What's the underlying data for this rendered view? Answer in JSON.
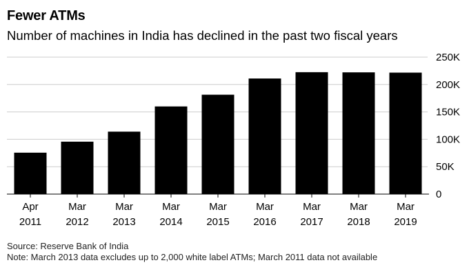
{
  "header": {
    "title": "Fewer ATMs",
    "subtitle": "Number of machines in India has declined in the past two fiscal years"
  },
  "footer": {
    "source": "Source: Reserve Bank of India",
    "note": "Note: March 2013 data excludes up to 2,000 white label ATMs; March 2011 data not available"
  },
  "colors": {
    "bar": "#000000",
    "gridline": "#cccccc",
    "baseline": "#000000",
    "text": "#000000"
  },
  "chart_data": {
    "type": "bar",
    "categories": [
      [
        "Apr",
        "2011"
      ],
      [
        "Mar",
        "2012"
      ],
      [
        "Mar",
        "2013"
      ],
      [
        "Mar",
        "2014"
      ],
      [
        "Mar",
        "2015"
      ],
      [
        "Mar",
        "2016"
      ],
      [
        "Mar",
        "2017"
      ],
      [
        "Mar",
        "2018"
      ],
      [
        "Mar",
        "2019"
      ]
    ],
    "values": [
      75600,
      95700,
      114000,
      160000,
      181400,
      211000,
      222500,
      222200,
      221700
    ],
    "ylim": [
      0,
      250000
    ],
    "yticks": [
      0,
      50000,
      100000,
      150000,
      200000,
      250000
    ],
    "ytick_labels": [
      "0",
      "50K",
      "100K",
      "150K",
      "200K",
      "250K"
    ],
    "yaxis_side": "right",
    "grid": true,
    "xlabel": "",
    "ylabel": ""
  }
}
